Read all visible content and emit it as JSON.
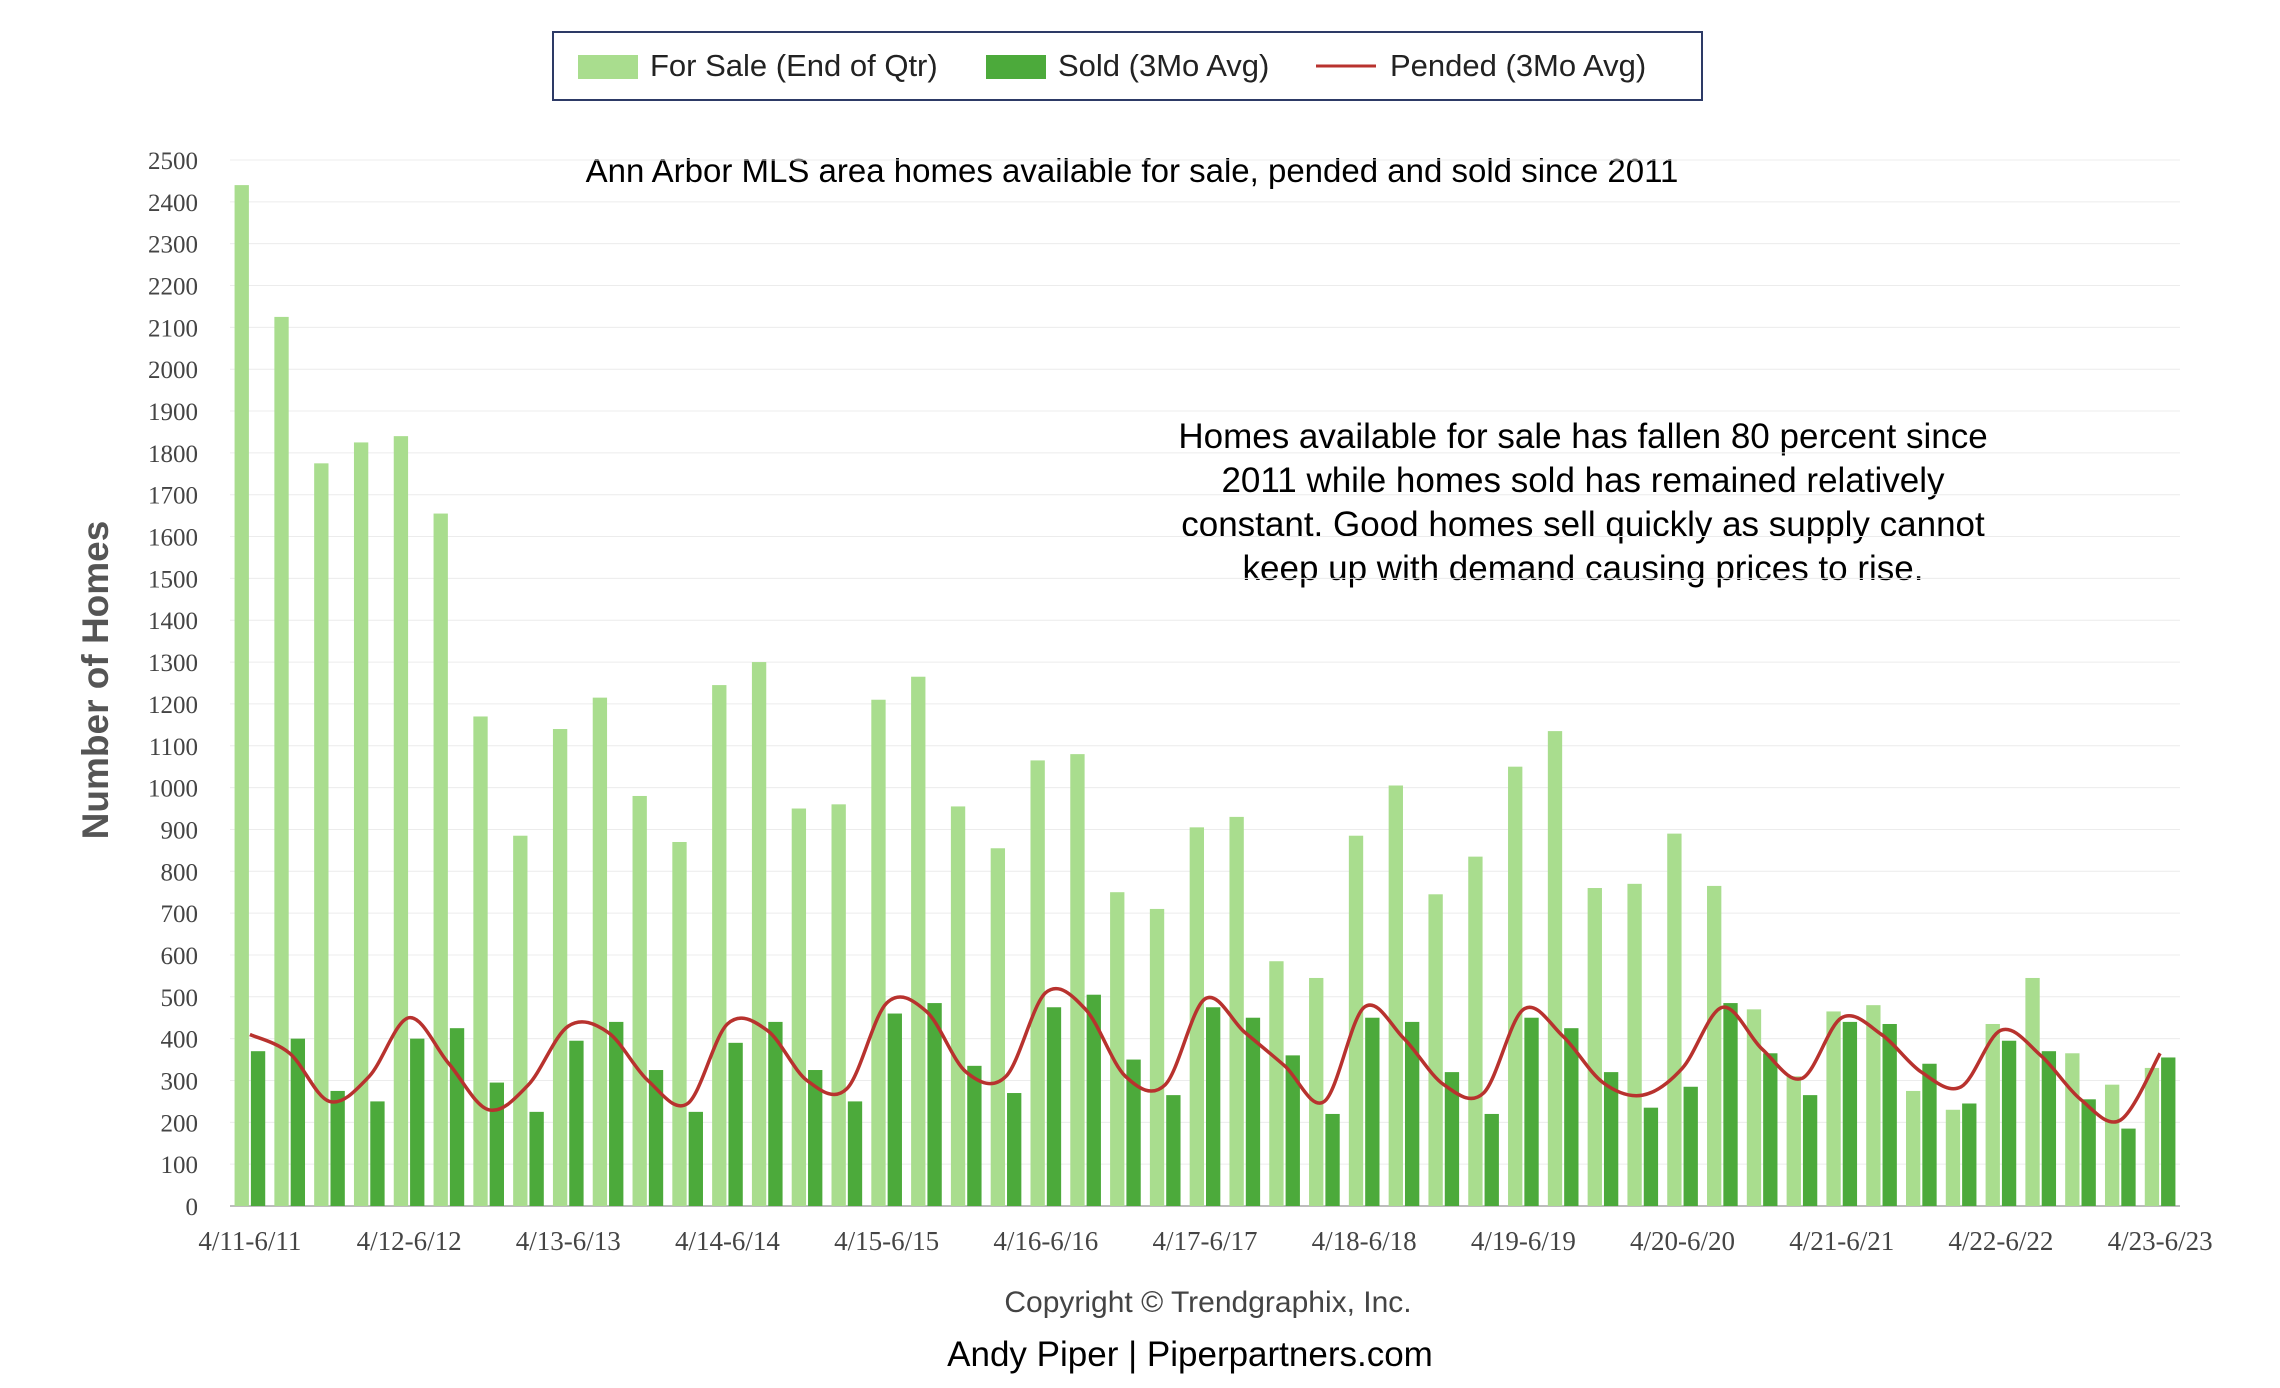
{
  "chart_data": {
    "type": "bar",
    "title": "Ann Arbor MLS area homes available for sale, pended and sold since 2011",
    "annotation": [
      "Homes available for sale has fallen 80 percent since",
      "2011 while homes sold has remained relatively",
      "constant.  Good homes sell quickly as supply cannot",
      "keep up with demand causing prices to rise."
    ],
    "ylabel": "Number of Homes",
    "ylim": [
      0,
      2500
    ],
    "yticks": [
      0,
      100,
      200,
      300,
      400,
      500,
      600,
      700,
      800,
      900,
      1000,
      1100,
      1200,
      1300,
      1400,
      1500,
      1600,
      1700,
      1800,
      1900,
      2000,
      2100,
      2200,
      2300,
      2400,
      2500
    ],
    "x_tick_labels": [
      "4/11-6/11",
      "4/12-6/12",
      "4/13-6/13",
      "4/14-6/14",
      "4/15-6/15",
      "4/16-6/16",
      "4/17-6/17",
      "4/18-6/18",
      "4/19-6/19",
      "4/20-6/20",
      "4/21-6/21",
      "4/22-6/22",
      "4/23-6/23"
    ],
    "grid": true,
    "legend_position": "top-center",
    "series": [
      {
        "name": "For Sale (End of Qtr)",
        "type": "bar",
        "color": "#a9dd8e",
        "values": [
          2440,
          2125,
          1775,
          1825,
          1840,
          1655,
          1170,
          885,
          1140,
          1215,
          980,
          870,
          1245,
          1300,
          950,
          960,
          1210,
          1265,
          955,
          855,
          1065,
          1080,
          750,
          710,
          905,
          930,
          585,
          545,
          885,
          1005,
          745,
          835,
          1050,
          1135,
          760,
          770,
          890,
          765,
          470,
          310,
          465,
          480,
          275,
          230,
          435,
          545,
          365,
          290,
          330
        ]
      },
      {
        "name": "Sold (3Mo Avg)",
        "type": "bar",
        "color": "#4caa3b",
        "values": [
          370,
          400,
          275,
          250,
          400,
          425,
          295,
          225,
          395,
          440,
          325,
          225,
          390,
          440,
          325,
          250,
          460,
          485,
          335,
          270,
          475,
          505,
          350,
          265,
          475,
          450,
          360,
          220,
          450,
          440,
          320,
          220,
          450,
          425,
          320,
          235,
          285,
          485,
          365,
          265,
          440,
          435,
          340,
          245,
          395,
          370,
          255,
          185,
          355
        ]
      },
      {
        "name": "Pended (3Mo Avg)",
        "type": "line",
        "color": "#b8322e",
        "values": [
          410,
          365,
          250,
          310,
          450,
          340,
          230,
          290,
          430,
          415,
          300,
          245,
          435,
          420,
          300,
          280,
          485,
          465,
          320,
          310,
          510,
          470,
          310,
          290,
          495,
          415,
          335,
          250,
          475,
          400,
          290,
          270,
          470,
          405,
          295,
          265,
          330,
          475,
          375,
          305,
          450,
          410,
          320,
          285,
          420,
          360,
          255,
          205,
          365
        ]
      }
    ]
  },
  "footer": {
    "copyright": "Copyright © Trendgraphix, Inc.",
    "credit": "Andy Piper | Piperpartners.com"
  }
}
